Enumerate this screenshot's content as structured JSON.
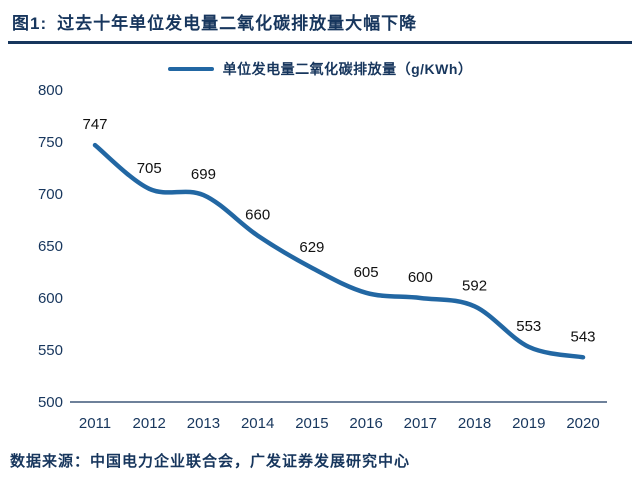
{
  "header": {
    "prefix": "图1:",
    "title": "过去十年单位发电量二氧化碳排放量大幅下降"
  },
  "legend": {
    "label": "单位发电量二氧化碳排放量（g/KWh）"
  },
  "footer": {
    "source": "数据来源：中国电力企业联合会，广发证券发展研究中心"
  },
  "colors": {
    "line": "#2267A3",
    "axis": "#17365D",
    "tick_text": "#17365D",
    "value_text": "#111111",
    "title_text": "#17365D"
  },
  "chart_data": {
    "type": "line",
    "title": "过去十年单位发电量二氧化碳排放量大幅下降",
    "categories": [
      "2011",
      "2012",
      "2013",
      "2014",
      "2015",
      "2016",
      "2017",
      "2018",
      "2019",
      "2020"
    ],
    "series": [
      {
        "name": "单位发电量二氧化碳排放量（g/KWh）",
        "values": [
          747,
          705,
          699,
          660,
          629,
          605,
          600,
          592,
          553,
          543
        ]
      }
    ],
    "xlabel": "",
    "ylabel": "",
    "ylim": [
      500,
      800
    ],
    "yticks": [
      500,
      550,
      600,
      650,
      700,
      750,
      800
    ],
    "grid": false,
    "legend_position": "top",
    "data_labels": true
  }
}
